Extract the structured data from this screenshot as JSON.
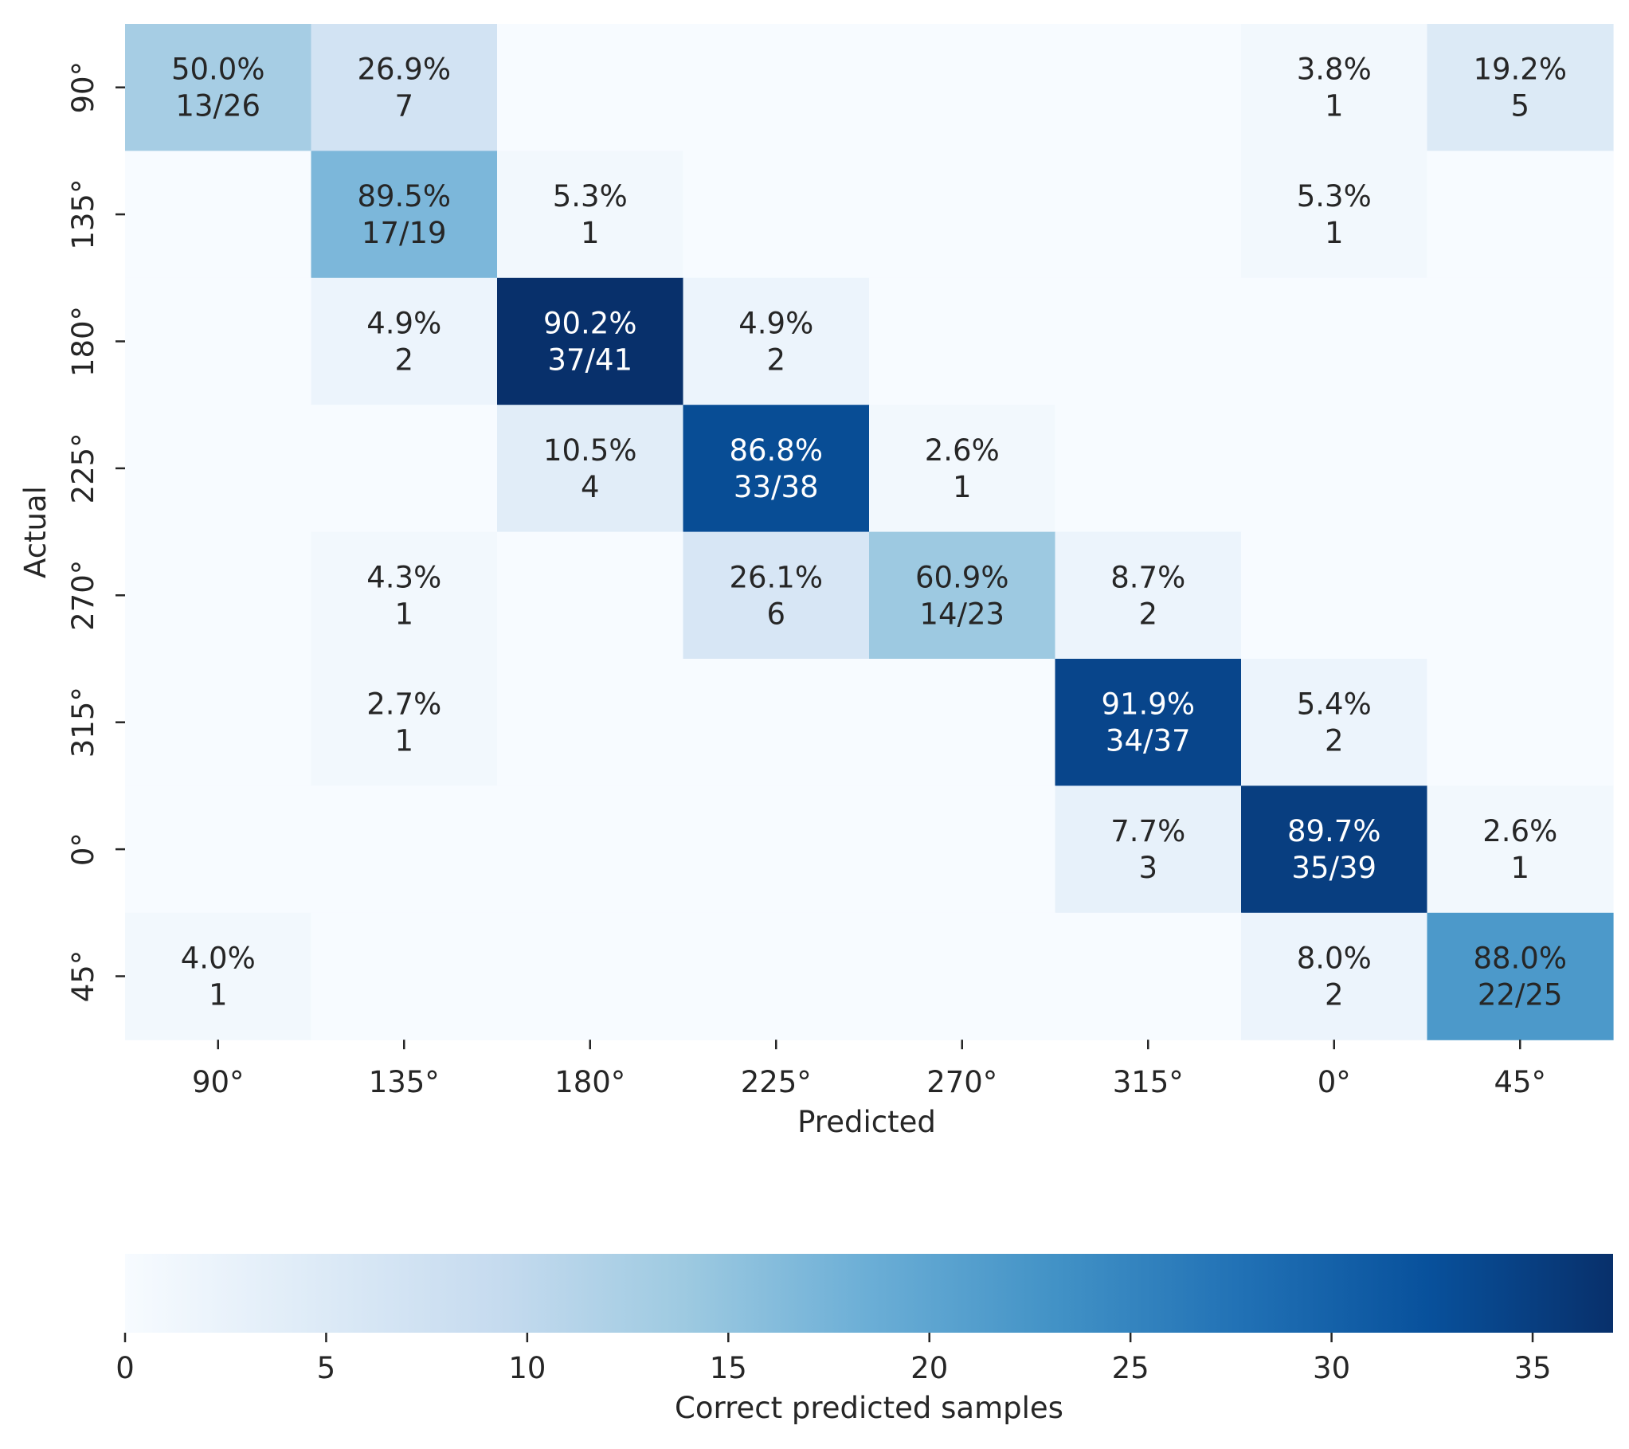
{
  "chart_data": {
    "type": "heatmap",
    "x_labels": [
      "90°",
      "135°",
      "180°",
      "225°",
      "270°",
      "315°",
      "0°",
      "45°"
    ],
    "y_labels": [
      "90°",
      "135°",
      "180°",
      "225°",
      "270°",
      "315°",
      "0°",
      "45°"
    ],
    "xlabel": "Predicted",
    "ylabel": "Actual",
    "counts": [
      [
        13,
        7,
        0,
        0,
        0,
        0,
        1,
        5
      ],
      [
        0,
        17,
        1,
        0,
        0,
        0,
        1,
        0
      ],
      [
        0,
        2,
        37,
        2,
        0,
        0,
        0,
        0
      ],
      [
        0,
        0,
        4,
        33,
        1,
        0,
        0,
        0
      ],
      [
        0,
        1,
        0,
        6,
        14,
        2,
        0,
        0
      ],
      [
        0,
        1,
        0,
        0,
        0,
        34,
        2,
        0
      ],
      [
        0,
        0,
        0,
        0,
        0,
        3,
        35,
        1
      ],
      [
        1,
        0,
        0,
        0,
        0,
        0,
        2,
        22
      ]
    ],
    "cell_labels": [
      [
        [
          "50.0%",
          "13/26"
        ],
        [
          "26.9%",
          "7"
        ],
        null,
        null,
        null,
        null,
        [
          "3.8%",
          "1"
        ],
        [
          "19.2%",
          "5"
        ]
      ],
      [
        null,
        [
          "89.5%",
          "17/19"
        ],
        [
          "5.3%",
          "1"
        ],
        null,
        null,
        null,
        [
          "5.3%",
          "1"
        ],
        null
      ],
      [
        null,
        [
          "4.9%",
          "2"
        ],
        [
          "90.2%",
          "37/41"
        ],
        [
          "4.9%",
          "2"
        ],
        null,
        null,
        null,
        null
      ],
      [
        null,
        null,
        [
          "10.5%",
          "4"
        ],
        [
          "86.8%",
          "33/38"
        ],
        [
          "2.6%",
          "1"
        ],
        null,
        null,
        null
      ],
      [
        null,
        [
          "4.3%",
          "1"
        ],
        null,
        [
          "26.1%",
          "6"
        ],
        [
          "60.9%",
          "14/23"
        ],
        [
          "8.7%",
          "2"
        ],
        null,
        null
      ],
      [
        null,
        [
          "2.7%",
          "1"
        ],
        null,
        null,
        null,
        [
          "91.9%",
          "34/37"
        ],
        [
          "5.4%",
          "2"
        ],
        null
      ],
      [
        null,
        null,
        null,
        null,
        null,
        [
          "7.7%",
          "3"
        ],
        [
          "89.7%",
          "35/39"
        ],
        [
          "2.6%",
          "1"
        ]
      ],
      [
        [
          "4.0%",
          "1"
        ],
        null,
        null,
        null,
        null,
        null,
        [
          "8.0%",
          "2"
        ],
        [
          "88.0%",
          "22/25"
        ]
      ]
    ],
    "colorbar": {
      "label": "Correct predicted samples",
      "range": [
        0,
        37
      ],
      "ticks": [
        0,
        5,
        10,
        15,
        20,
        25,
        30,
        35
      ],
      "colormap": "Blues"
    },
    "colors": {
      "text_dark": "#262626",
      "text_light": "#ffffff",
      "cmap_stops": [
        "#f7fbff",
        "#deebf7",
        "#c6dbef",
        "#9ecae1",
        "#6baed6",
        "#4292c6",
        "#2171b5",
        "#08519c",
        "#08306b"
      ]
    }
  }
}
